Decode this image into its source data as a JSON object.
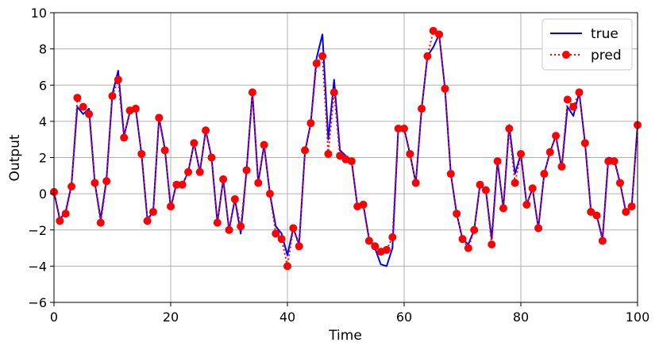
{
  "chart_data": {
    "type": "line",
    "title": "",
    "xlabel": "Time",
    "ylabel": "Output",
    "xlim": [
      0,
      100
    ],
    "ylim": [
      -6,
      10
    ],
    "xticks": [
      0,
      20,
      40,
      60,
      80,
      100
    ],
    "yticks": [
      -6,
      -4,
      -2,
      0,
      2,
      4,
      6,
      8,
      10
    ],
    "grid": true,
    "legend_position": "top-right",
    "series": [
      {
        "name": "true",
        "style": "solid line",
        "color": "#0000ff",
        "x": [
          0,
          1,
          2,
          3,
          4,
          5,
          6,
          7,
          8,
          9,
          10,
          11,
          12,
          13,
          14,
          15,
          16,
          17,
          18,
          19,
          20,
          21,
          22,
          23,
          24,
          25,
          26,
          27,
          28,
          29,
          30,
          31,
          32,
          33,
          34,
          35,
          36,
          37,
          38,
          39,
          40,
          41,
          42,
          43,
          44,
          45,
          46,
          47,
          48,
          49,
          50,
          51,
          52,
          53,
          54,
          55,
          56,
          57,
          58,
          59,
          60,
          61,
          62,
          63,
          64,
          65,
          66,
          67,
          68,
          69,
          70,
          71,
          72,
          73,
          74,
          75,
          76,
          77,
          78,
          79,
          80,
          81,
          82,
          83,
          84,
          85,
          86,
          87,
          88,
          89,
          90,
          91,
          92,
          93,
          94,
          95,
          96,
          97,
          98,
          99,
          100
        ],
        "values": [
          0.1,
          -1.4,
          -1.0,
          0.5,
          4.8,
          4.4,
          4.7,
          0.6,
          -1.4,
          0.8,
          5.5,
          6.8,
          3.2,
          4.5,
          4.7,
          2.2,
          -1.4,
          -1.0,
          4.2,
          2.5,
          -0.8,
          0.6,
          0.5,
          1.2,
          2.8,
          1.2,
          3.5,
          2.0,
          -1.6,
          0.8,
          -2.0,
          -0.3,
          -2.2,
          1.3,
          5.6,
          0.6,
          2.7,
          0.0,
          -1.8,
          -2.2,
          -3.4,
          -1.9,
          -2.8,
          2.3,
          3.9,
          7.5,
          8.8,
          3.0,
          6.3,
          2.4,
          2.1,
          1.8,
          -0.7,
          -0.6,
          -2.5,
          -3.0,
          -3.9,
          -4.0,
          -3.0,
          3.6,
          3.6,
          2.2,
          0.6,
          4.7,
          7.6,
          8.1,
          8.8,
          5.8,
          1.1,
          -1.1,
          -2.5,
          -2.8,
          -2.0,
          0.5,
          0.2,
          -2.5,
          1.8,
          -0.8,
          3.8,
          1.1,
          2.2,
          -0.6,
          0.3,
          -1.9,
          1.1,
          2.3,
          3.2,
          1.4,
          4.8,
          4.3,
          5.6,
          2.8,
          -0.9,
          -1.2,
          -2.5,
          2.0,
          1.9,
          0.6,
          -1.0,
          -0.7,
          3.8
        ]
      },
      {
        "name": "pred",
        "style": "dotted line with circle markers",
        "color": "#ff0000",
        "x": [
          0,
          1,
          2,
          3,
          4,
          5,
          6,
          7,
          8,
          9,
          10,
          11,
          12,
          13,
          14,
          15,
          16,
          17,
          18,
          19,
          20,
          21,
          22,
          23,
          24,
          25,
          26,
          27,
          28,
          29,
          30,
          31,
          32,
          33,
          34,
          35,
          36,
          37,
          38,
          39,
          40,
          41,
          42,
          43,
          44,
          45,
          46,
          47,
          48,
          49,
          50,
          51,
          52,
          53,
          54,
          55,
          56,
          57,
          58,
          59,
          60,
          61,
          62,
          63,
          64,
          65,
          66,
          67,
          68,
          69,
          70,
          71,
          72,
          73,
          74,
          75,
          76,
          77,
          78,
          79,
          80,
          81,
          82,
          83,
          84,
          85,
          86,
          87,
          88,
          89,
          90,
          91,
          92,
          93,
          94,
          95,
          96,
          97,
          98,
          99,
          100
        ],
        "values": [
          0.1,
          -1.5,
          -1.1,
          0.4,
          5.3,
          4.8,
          4.4,
          0.6,
          -1.6,
          0.7,
          5.4,
          6.3,
          3.1,
          4.6,
          4.7,
          2.2,
          -1.5,
          -1.0,
          4.2,
          2.4,
          -0.7,
          0.5,
          0.5,
          1.2,
          2.8,
          1.2,
          3.5,
          2.0,
          -1.6,
          0.8,
          -2.0,
          -0.3,
          -1.8,
          1.3,
          5.6,
          0.6,
          2.7,
          0.0,
          -2.2,
          -2.5,
          -4.0,
          -1.9,
          -2.9,
          2.4,
          3.9,
          7.2,
          7.6,
          2.2,
          5.6,
          2.1,
          1.9,
          1.8,
          -0.7,
          -0.6,
          -2.6,
          -2.9,
          -3.2,
          -3.1,
          -2.4,
          3.6,
          3.6,
          2.2,
          0.6,
          4.7,
          7.6,
          9.0,
          8.8,
          5.8,
          1.1,
          -1.1,
          -2.5,
          -3.0,
          -2.0,
          0.5,
          0.2,
          -2.8,
          1.8,
          -0.8,
          3.6,
          0.6,
          2.2,
          -0.6,
          0.3,
          -1.9,
          1.1,
          2.3,
          3.2,
          1.5,
          5.2,
          4.8,
          5.6,
          2.8,
          -1.0,
          -1.2,
          -2.6,
          1.8,
          1.8,
          0.6,
          -1.0,
          -0.7,
          3.8
        ]
      }
    ]
  }
}
